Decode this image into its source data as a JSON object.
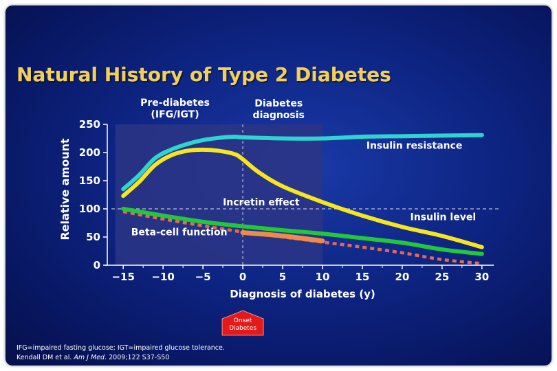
{
  "title": "Natural History of Type 2 Diabetes",
  "footnote_line1": "IFG=impaired fasting glucose; IGT=impaired glucose tolerance.",
  "footnote_line2_prefix": "Kendall DM et al. ",
  "footnote_line2_journal": "Am J Med",
  "footnote_line2_suffix": ". 2009;122 S37-S50",
  "colors": {
    "title": "#f2cf59",
    "insulin_resistance": "#2fd3d0",
    "insulin_level": "#f5e61e",
    "beta_cell": "#22c83a",
    "incretin": "#f08a4a",
    "beta_dotted": "#e36a52",
    "arrow": "#e21a1a"
  },
  "chart_data": {
    "type": "line",
    "xlabel": "Diagnosis of diabetes (y)",
    "ylabel": "Relative amount",
    "xlim": [
      -17,
      32
    ],
    "ylim": [
      0,
      250
    ],
    "x_ticks": [
      -15,
      -10,
      -5,
      0,
      5,
      10,
      15,
      20,
      25,
      30
    ],
    "x_tick_labels": [
      "−15",
      "−10",
      "−5",
      "0",
      "5",
      "10",
      "15",
      "20",
      "25",
      "30"
    ],
    "y_ticks": [
      0,
      50,
      100,
      150,
      200,
      250
    ],
    "y_tick_labels": [
      "0",
      "50",
      "100",
      "150",
      "200",
      "250"
    ],
    "reference_line_y": 100,
    "diagnosis_line_x": 0,
    "shaded_region": {
      "x": [
        -16,
        10
      ],
      "label_left": "Pre-diabetes\n(IFG/IGT)",
      "label_right": "Diabetes\ndiagnosis"
    },
    "onset_label": "Onset\nDiabetes",
    "series": [
      {
        "name": "Insulin resistance",
        "key": "insulin_resistance",
        "x": [
          -15,
          -13,
          -11,
          -9,
          -7,
          -5,
          -3,
          -1,
          0,
          5,
          10,
          15,
          20,
          25,
          30
        ],
        "y": [
          135,
          160,
          190,
          205,
          215,
          222,
          226,
          228,
          227,
          225,
          225,
          228,
          229,
          230,
          231
        ]
      },
      {
        "name": "Insulin level",
        "key": "insulin_level",
        "x": [
          -15,
          -13,
          -11,
          -9,
          -7,
          -5,
          -3,
          -1,
          0,
          2,
          5,
          10,
          15,
          20,
          25,
          30
        ],
        "y": [
          123,
          148,
          178,
          195,
          203,
          205,
          203,
          197,
          188,
          165,
          140,
          112,
          88,
          68,
          52,
          32
        ]
      },
      {
        "name": "Beta-cell function",
        "key": "beta_cell",
        "x": [
          -15,
          -10,
          -5,
          0,
          5,
          10,
          15,
          20,
          25,
          30
        ],
        "y": [
          100,
          88,
          77,
          69,
          62,
          56,
          48,
          40,
          28,
          20
        ]
      },
      {
        "name": "Incretin effect",
        "key": "incretin",
        "x": [
          0,
          5,
          10
        ],
        "y": [
          58,
          52,
          43
        ]
      },
      {
        "name": "",
        "key": "beta_dotted",
        "dashed": true,
        "x": [
          -15,
          -10,
          -5,
          0,
          5,
          10,
          15,
          20,
          25,
          30
        ],
        "y": [
          95,
          82,
          70,
          59,
          50,
          41,
          32,
          22,
          10,
          3
        ]
      }
    ],
    "series_labels": [
      {
        "text": "Insulin resistance",
        "x": 15.5,
        "y": 207
      },
      {
        "text": "Incretin effect",
        "x": -2.5,
        "y": 106
      },
      {
        "text": "Insulin level",
        "x": 21,
        "y": 80
      },
      {
        "text": "Beta-cell function",
        "x": -14,
        "y": 53
      }
    ]
  }
}
